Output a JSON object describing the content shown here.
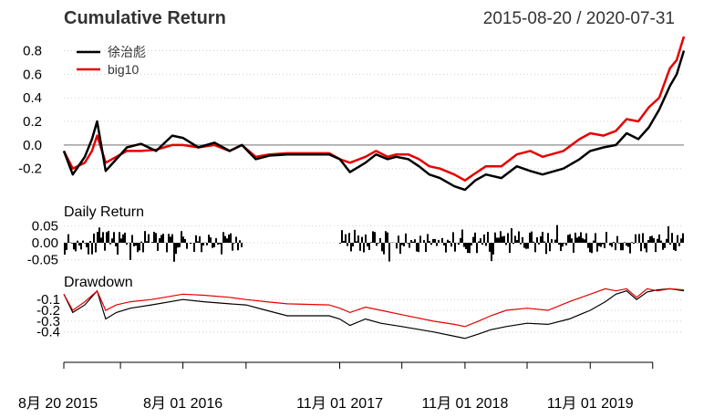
{
  "header": {
    "title": "Cumulative Return",
    "date_range": "2015-08-20 / 2020-07-31"
  },
  "legend": {
    "items": [
      {
        "label": "徐治彪",
        "color": "#000000"
      },
      {
        "label": "big10",
        "color": "#e60000"
      }
    ]
  },
  "panels": {
    "daily_return_label": "Daily Return",
    "drawdown_label": "Drawdown"
  },
  "x_axis": {
    "ticks": [
      "8月 20 2015",
      "8月 01 2016",
      "11月 01 2017",
      "11月 01 2018",
      "11月 01 2019"
    ]
  },
  "chart_data": [
    {
      "type": "line",
      "title": "Cumulative Return",
      "x": [
        "2015-08-20",
        "2015-09-15",
        "2015-10-20",
        "2015-11-10",
        "2015-11-25",
        "2015-12-20",
        "2016-01-20",
        "2016-02-20",
        "2016-04-01",
        "2016-05-15",
        "2016-07-01",
        "2016-08-01",
        "2016-09-15",
        "2016-11-01",
        "2016-12-15",
        "2017-01-20",
        "2017-03-01",
        "2017-04-10",
        "2017-06-01",
        "2017-08-01",
        "2017-10-01",
        "2017-11-01",
        "2017-12-01",
        "2018-01-15",
        "2018-02-15",
        "2018-03-20",
        "2018-04-15",
        "2018-05-20",
        "2018-06-20",
        "2018-07-20",
        "2018-08-20",
        "2018-10-01",
        "2018-11-01",
        "2018-12-01",
        "2019-01-01",
        "2019-02-15",
        "2019-04-01",
        "2019-05-10",
        "2019-06-15",
        "2019-08-15",
        "2019-10-01",
        "2019-11-01",
        "2019-12-10",
        "2020-01-15",
        "2020-02-15",
        "2020-03-20",
        "2020-04-20",
        "2020-05-20",
        "2020-06-20",
        "2020-07-10",
        "2020-07-31"
      ],
      "series": [
        {
          "name": "徐治彪",
          "values": [
            -0.05,
            -0.25,
            -0.1,
            0.05,
            0.2,
            -0.22,
            -0.12,
            -0.02,
            0.01,
            -0.05,
            0.08,
            0.06,
            -0.02,
            0.02,
            -0.05,
            0.0,
            -0.12,
            -0.09,
            -0.08,
            -0.08,
            -0.08,
            -0.12,
            -0.23,
            -0.15,
            -0.08,
            -0.12,
            -0.1,
            -0.12,
            -0.18,
            -0.25,
            -0.28,
            -0.35,
            -0.38,
            -0.3,
            -0.25,
            -0.28,
            -0.18,
            -0.22,
            -0.25,
            -0.2,
            -0.12,
            -0.05,
            -0.02,
            0.0,
            0.1,
            0.05,
            0.15,
            0.3,
            0.5,
            0.6,
            0.8
          ]
        },
        {
          "name": "big10",
          "values": [
            -0.05,
            -0.2,
            -0.15,
            -0.05,
            0.08,
            -0.15,
            -0.1,
            -0.05,
            -0.05,
            -0.04,
            0.0,
            0.0,
            -0.02,
            0.0,
            -0.05,
            0.0,
            -0.1,
            -0.08,
            -0.07,
            -0.07,
            -0.07,
            -0.12,
            -0.15,
            -0.1,
            -0.05,
            -0.1,
            -0.08,
            -0.08,
            -0.12,
            -0.18,
            -0.2,
            -0.25,
            -0.3,
            -0.24,
            -0.18,
            -0.18,
            -0.08,
            -0.05,
            -0.1,
            -0.05,
            0.05,
            0.1,
            0.08,
            0.12,
            0.22,
            0.2,
            0.32,
            0.4,
            0.65,
            0.72,
            0.92
          ]
        }
      ],
      "yticks": [
        "0.8",
        "0.6",
        "0.4",
        "0.2",
        "0.0",
        "-0.2"
      ],
      "ylim": [
        -0.38,
        0.92
      ],
      "reference_line": 0.0,
      "legend_position": "top-left",
      "grid": true
    },
    {
      "type": "bar",
      "title": "Daily Return",
      "series": [
        {
          "name": "徐治彪",
          "amplitude": 0.05
        }
      ],
      "gap": [
        "2017-01-20",
        "2017-11-01"
      ],
      "yticks": [
        "0.05",
        "0.00",
        "-0.05"
      ],
      "ylim": [
        -0.07,
        0.07
      ],
      "grid": true
    },
    {
      "type": "line",
      "title": "Drawdown",
      "x": [
        "2015-08-20",
        "2015-09-15",
        "2015-10-20",
        "2015-11-25",
        "2015-12-20",
        "2016-01-20",
        "2016-03-01",
        "2016-05-01",
        "2016-08-01",
        "2016-10-01",
        "2016-12-15",
        "2017-02-01",
        "2017-04-01",
        "2017-06-01",
        "2017-10-01",
        "2017-11-01",
        "2017-12-01",
        "2018-01-15",
        "2018-03-01",
        "2018-05-01",
        "2018-08-01",
        "2018-10-01",
        "2018-11-01",
        "2018-12-10",
        "2019-01-15",
        "2019-03-01",
        "2019-05-01",
        "2019-07-01",
        "2019-09-01",
        "2019-11-01",
        "2019-12-15",
        "2020-01-15",
        "2020-02-15",
        "2020-03-15",
        "2020-04-15",
        "2020-05-15",
        "2020-06-20",
        "2020-07-31"
      ],
      "series": [
        {
          "name": "徐治彪",
          "values": [
            -0.05,
            -0.22,
            -0.15,
            -0.02,
            -0.28,
            -0.22,
            -0.18,
            -0.15,
            -0.1,
            -0.12,
            -0.14,
            -0.15,
            -0.2,
            -0.25,
            -0.25,
            -0.28,
            -0.34,
            -0.28,
            -0.32,
            -0.35,
            -0.4,
            -0.44,
            -0.46,
            -0.42,
            -0.38,
            -0.35,
            -0.32,
            -0.33,
            -0.28,
            -0.2,
            -0.12,
            -0.05,
            -0.02,
            -0.1,
            -0.03,
            -0.01,
            0.0,
            -0.02
          ]
        },
        {
          "name": "big10",
          "values": [
            -0.05,
            -0.2,
            -0.12,
            -0.02,
            -0.2,
            -0.15,
            -0.12,
            -0.1,
            -0.05,
            -0.06,
            -0.08,
            -0.1,
            -0.12,
            -0.14,
            -0.15,
            -0.18,
            -0.22,
            -0.17,
            -0.2,
            -0.24,
            -0.3,
            -0.33,
            -0.35,
            -0.3,
            -0.25,
            -0.2,
            -0.18,
            -0.2,
            -0.12,
            -0.05,
            0.0,
            -0.02,
            0.0,
            -0.08,
            0.0,
            -0.02,
            0.0,
            -0.01
          ]
        }
      ],
      "yticks": [
        "-0.1",
        "-0.2",
        "-0.3",
        "-0.4"
      ],
      "ylim": [
        -0.47,
        0.02
      ],
      "grid": true
    }
  ]
}
